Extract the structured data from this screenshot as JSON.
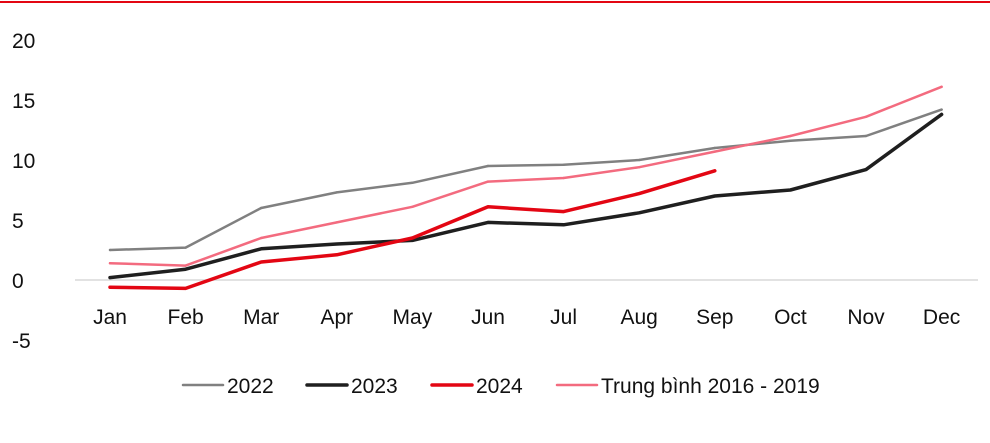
{
  "chart_data": {
    "type": "line",
    "categories": [
      "Jan",
      "Feb",
      "Mar",
      "Apr",
      "May",
      "Jun",
      "Jul",
      "Aug",
      "Sep",
      "Oct",
      "Nov",
      "Dec"
    ],
    "ylim": [
      -5,
      20
    ],
    "yticks": [
      20,
      15,
      10,
      5,
      0,
      -5
    ],
    "grid": false,
    "legend_position": "bottom",
    "accent_color": "#e30613",
    "series": [
      {
        "name": "2022",
        "color": "#808080",
        "values": [
          2.5,
          2.7,
          6.0,
          7.3,
          8.1,
          9.5,
          9.6,
          10.0,
          11.0,
          11.6,
          12.0,
          14.2
        ]
      },
      {
        "name": "2023",
        "color": "#1f1f1f",
        "values": [
          0.2,
          0.9,
          2.6,
          3.0,
          3.3,
          4.8,
          4.6,
          5.6,
          7.0,
          7.5,
          9.2,
          13.8
        ]
      },
      {
        "name": "2024",
        "color": "#e30613",
        "values": [
          -0.6,
          -0.7,
          1.5,
          2.1,
          3.5,
          6.1,
          5.7,
          7.2,
          9.1,
          null,
          null,
          null
        ]
      },
      {
        "name": "Trung bình 2016 - 2019",
        "color": "#f36b7f",
        "values": [
          1.4,
          1.2,
          3.5,
          4.8,
          6.1,
          8.2,
          8.5,
          9.4,
          10.7,
          12.0,
          13.6,
          16.1
        ]
      }
    ]
  }
}
